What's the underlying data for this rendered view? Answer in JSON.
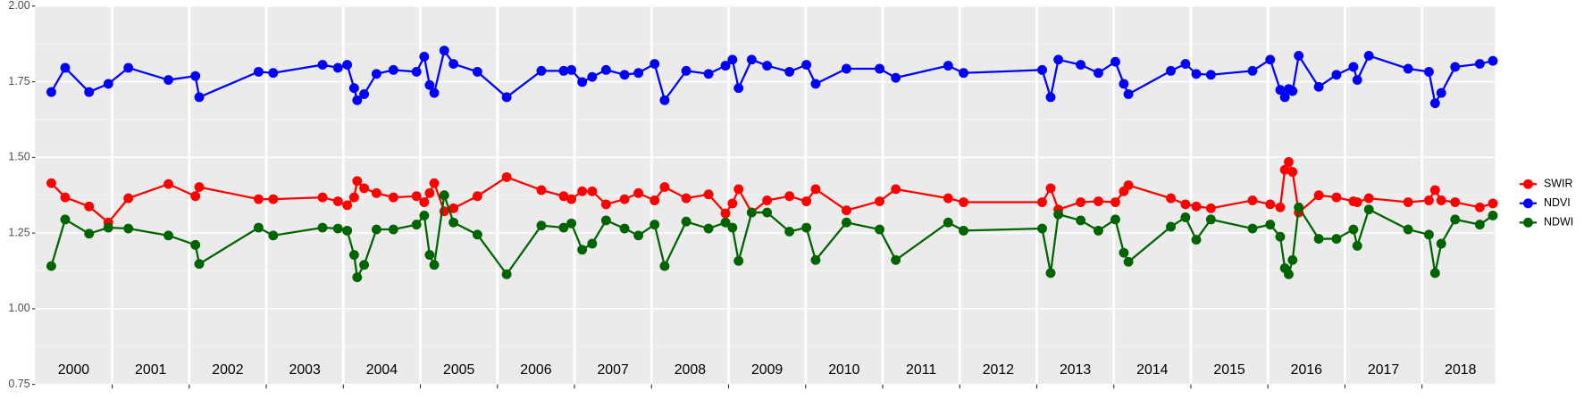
{
  "chart_data": {
    "type": "line",
    "x": [
      2000.21,
      2000.39,
      2000.7,
      2000.95,
      2001.21,
      2001.73,
      2002.08,
      2002.13,
      2002.9,
      2003.09,
      2003.73,
      2003.93,
      2004.05,
      2004.14,
      2004.18,
      2004.27,
      2004.43,
      2004.65,
      2004.95,
      2005.05,
      2005.12,
      2005.18,
      2005.31,
      2005.43,
      2005.74,
      2006.12,
      2006.57,
      2006.86,
      2006.96,
      2007.1,
      2007.23,
      2007.41,
      2007.65,
      2007.83,
      2008.04,
      2008.17,
      2008.45,
      2008.74,
      2008.96,
      2009.05,
      2009.13,
      2009.3,
      2009.5,
      2009.79,
      2010.01,
      2010.13,
      2010.53,
      2010.96,
      2011.17,
      2011.85,
      2012.05,
      2013.07,
      2013.18,
      2013.28,
      2013.57,
      2013.8,
      2014.02,
      2014.13,
      2014.19,
      2014.74,
      2014.93,
      2015.07,
      2015.26,
      2015.8,
      2016.03,
      2016.16,
      2016.22,
      2016.27,
      2016.32,
      2016.4,
      2016.66,
      2016.89,
      2017.11,
      2017.16,
      2017.31,
      2017.82,
      2018.09,
      2018.17,
      2018.25,
      2018.43,
      2018.75,
      2018.92
    ],
    "series": [
      {
        "name": "SWIR",
        "color": "#ff0000",
        "values": [
          1.415,
          1.368,
          1.338,
          1.285,
          1.365,
          1.412,
          1.372,
          1.402,
          1.362,
          1.362,
          1.368,
          1.355,
          1.342,
          1.368,
          1.422,
          1.398,
          1.382,
          1.368,
          1.372,
          1.352,
          1.382,
          1.415,
          1.322,
          1.332,
          1.372,
          1.435,
          1.392,
          1.372,
          1.362,
          1.388,
          1.388,
          1.345,
          1.362,
          1.382,
          1.358,
          1.402,
          1.365,
          1.378,
          1.315,
          1.348,
          1.395,
          1.318,
          1.358,
          1.372,
          1.355,
          1.395,
          1.325,
          1.355,
          1.395,
          1.365,
          1.352,
          1.352,
          1.398,
          1.328,
          1.352,
          1.355,
          1.352,
          1.388,
          1.408,
          1.365,
          1.345,
          1.338,
          1.332,
          1.358,
          1.345,
          1.335,
          1.459,
          1.485,
          1.452,
          1.318,
          1.375,
          1.368,
          1.355,
          1.352,
          1.365,
          1.352,
          1.358,
          1.392,
          1.358,
          1.352,
          1.335,
          1.348
        ]
      },
      {
        "name": "NDVI",
        "color": "#0000ff",
        "values": [
          1.716,
          1.796,
          1.716,
          1.743,
          1.796,
          1.756,
          1.769,
          1.699,
          1.783,
          1.779,
          1.806,
          1.796,
          1.806,
          1.729,
          1.689,
          1.709,
          1.776,
          1.789,
          1.783,
          1.833,
          1.739,
          1.713,
          1.853,
          1.809,
          1.783,
          1.699,
          1.786,
          1.786,
          1.789,
          1.749,
          1.766,
          1.789,
          1.773,
          1.779,
          1.809,
          1.689,
          1.786,
          1.776,
          1.803,
          1.823,
          1.729,
          1.823,
          1.803,
          1.783,
          1.806,
          1.743,
          1.793,
          1.793,
          1.763,
          1.803,
          1.779,
          1.789,
          1.699,
          1.823,
          1.806,
          1.779,
          1.816,
          1.743,
          1.709,
          1.786,
          1.809,
          1.776,
          1.773,
          1.786,
          1.823,
          1.723,
          1.699,
          1.726,
          1.719,
          1.836,
          1.733,
          1.773,
          1.799,
          1.756,
          1.836,
          1.793,
          1.783,
          1.679,
          1.713,
          1.799,
          1.809,
          1.819
        ]
      },
      {
        "name": "NDWI",
        "color": "#006400",
        "values": [
          1.141,
          1.295,
          1.248,
          1.268,
          1.265,
          1.242,
          1.211,
          1.148,
          1.268,
          1.242,
          1.268,
          1.265,
          1.258,
          1.178,
          1.104,
          1.145,
          1.262,
          1.262,
          1.278,
          1.308,
          1.178,
          1.145,
          1.375,
          1.285,
          1.245,
          1.114,
          1.275,
          1.268,
          1.282,
          1.195,
          1.215,
          1.292,
          1.265,
          1.242,
          1.278,
          1.141,
          1.288,
          1.265,
          1.285,
          1.268,
          1.158,
          1.318,
          1.318,
          1.255,
          1.268,
          1.161,
          1.285,
          1.262,
          1.161,
          1.285,
          1.258,
          1.265,
          1.118,
          1.312,
          1.292,
          1.258,
          1.295,
          1.185,
          1.155,
          1.271,
          1.302,
          1.228,
          1.295,
          1.265,
          1.278,
          1.238,
          1.134,
          1.114,
          1.161,
          1.335,
          1.231,
          1.231,
          1.262,
          1.208,
          1.328,
          1.262,
          1.245,
          1.118,
          1.215,
          1.295,
          1.278,
          1.308
        ]
      }
    ],
    "xlim": [
      2000,
      2018.95
    ],
    "xticks": [
      2001,
      2002,
      2003,
      2004,
      2005,
      2006,
      2007,
      2008,
      2009,
      2010,
      2011,
      2012,
      2013,
      2014,
      2015,
      2016,
      2017,
      2018
    ],
    "year_labels": [
      2000,
      2001,
      2002,
      2003,
      2004,
      2005,
      2006,
      2007,
      2008,
      2009,
      2010,
      2011,
      2012,
      2013,
      2014,
      2015,
      2016,
      2017,
      2018
    ],
    "ylim": [
      0.75,
      2.0
    ],
    "yticks": [
      0.75,
      {
        "value": 1,
        "label": "1.00"
      },
      1.25,
      {
        "value": 1.5,
        "label": "1.50"
      },
      1.75,
      {
        "value": 2,
        "label": "2.00"
      }
    ],
    "minor_yticks": [
      0.875,
      1.125,
      1.375,
      1.625,
      1.875
    ],
    "grid": true,
    "legend": "right"
  }
}
